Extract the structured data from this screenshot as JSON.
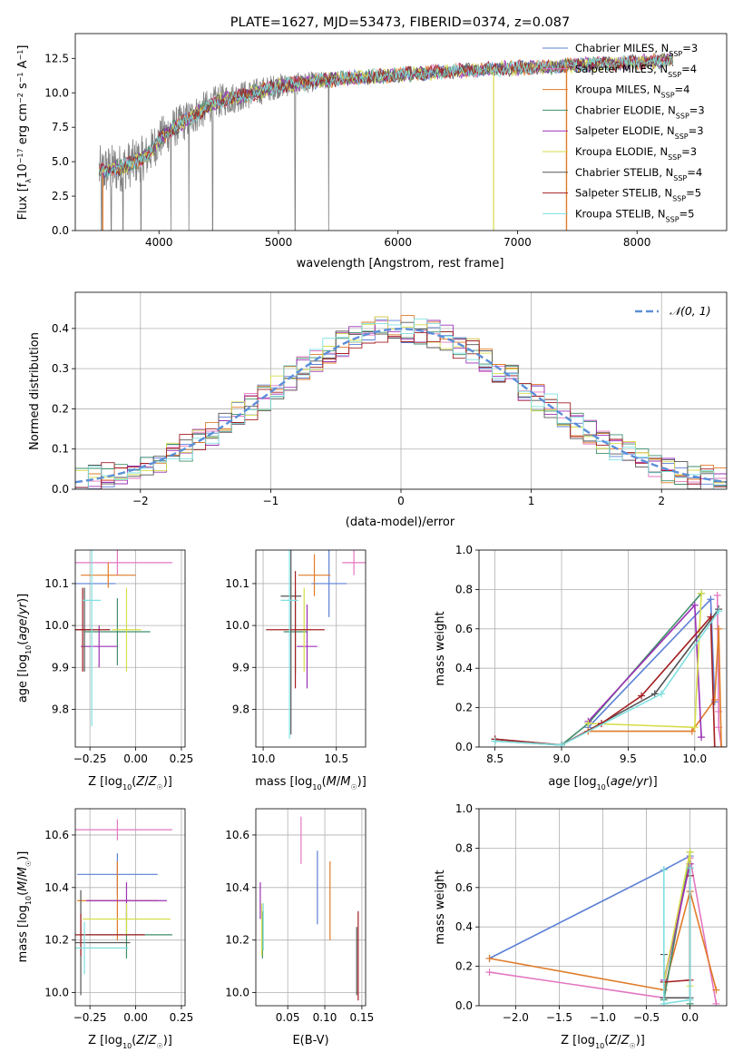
{
  "figure": {
    "title": "PLATE=1627, MJD=53473, FIBERID=0374, z=0.087"
  },
  "series_names": [
    "Chabrier MILES, N_SSP=3",
    "Salpeter MILES, N_SSP=4",
    "Kroupa MILES, N_SSP=4",
    "Chabrier ELODIE, N_SSP=3",
    "Salpeter ELODIE, N_SSP=3",
    "Kroupa ELODIE, N_SSP=3",
    "Chabrier STELIB, N_SSP=4",
    "Salpeter STELIB, N_SSP=5",
    "Kroupa STELIB, N_SSP=5"
  ],
  "series_colors": [
    "#5b7fd6",
    "#e377c2",
    "#e07b28",
    "#3f8f6a",
    "#9b30b5",
    "#d6dd4a",
    "#555555",
    "#a31f22",
    "#7fdfe0"
  ],
  "data_color": "#808080",
  "chart_data": [
    {
      "id": "spectrum",
      "type": "line",
      "xlabel": "wavelength [Angstrom, rest frame]",
      "ylabel": "Flux [f_λ 10^-17 erg cm^-2 s^-1 A^-1]",
      "xlim": [
        3300,
        8750
      ],
      "ylim": [
        0,
        14.3
      ],
      "xticks": [
        4000,
        5000,
        6000,
        7000,
        8000
      ],
      "yticks": [
        0.0,
        2.5,
        5.0,
        7.5,
        10.0,
        12.5
      ],
      "legend": {
        "position": "top-right",
        "entries": [
          {
            "base": "Chabrier MILES, N",
            "sub": "SSP",
            "tail": "=3"
          },
          {
            "base": "Salpeter MILES, N",
            "sub": "SSP",
            "tail": "=4"
          },
          {
            "base": "Kroupa MILES, N",
            "sub": "SSP",
            "tail": "=4"
          },
          {
            "base": "Chabrier ELODIE, N",
            "sub": "SSP",
            "tail": "=3"
          },
          {
            "base": "Salpeter ELODIE, N",
            "sub": "SSP",
            "tail": "=3"
          },
          {
            "base": "Kroupa ELODIE, N",
            "sub": "SSP",
            "tail": "=3"
          },
          {
            "base": "Chabrier STELIB, N",
            "sub": "SSP",
            "tail": "=4"
          },
          {
            "base": "Salpeter STELIB, N",
            "sub": "SSP",
            "tail": "=5"
          },
          {
            "base": "Kroupa STELIB, N",
            "sub": "SSP",
            "tail": "=5"
          }
        ]
      },
      "continuum": [
        [
          3500,
          4.3
        ],
        [
          3700,
          4.6
        ],
        [
          3900,
          5.4
        ],
        [
          4000,
          6.6
        ],
        [
          4100,
          7.3
        ],
        [
          4300,
          8.4
        ],
        [
          4500,
          9.4
        ],
        [
          4800,
          10.0
        ],
        [
          5000,
          10.5
        ],
        [
          5500,
          11.0
        ],
        [
          6000,
          11.3
        ],
        [
          6500,
          11.6
        ],
        [
          7000,
          11.8
        ],
        [
          7500,
          12.0
        ],
        [
          8000,
          12.2
        ],
        [
          8300,
          12.4
        ]
      ],
      "noisy_region": [
        3500,
        5500
      ],
      "dropouts": [
        3520,
        3600,
        3700,
        3850,
        4100,
        4250,
        4450,
        5140,
        5420,
        6800,
        7410
      ]
    },
    {
      "id": "residuals",
      "type": "histogram",
      "xlabel": "(data-model)/error",
      "ylabel": "Normed distribution",
      "xlim": [
        -2.5,
        2.5
      ],
      "ylim": [
        0,
        0.49
      ],
      "xticks": [
        -2,
        -1,
        0,
        1,
        2
      ],
      "yticks": [
        0.0,
        0.1,
        0.2,
        0.3,
        0.4
      ],
      "grid": true,
      "bin_width": 0.1,
      "model_label": "𝒩(0, 1)",
      "model_curve": "gaussian mean 0, sigma 1",
      "legend_position": "top-right"
    },
    {
      "id": "age_vs_Z",
      "type": "scatter",
      "xlabel": "Z [log10(Z/Z☉)]",
      "ylabel": "age [log10(age/yr)]",
      "xlim": [
        -0.33,
        0.27
      ],
      "ylim": [
        9.71,
        10.18
      ],
      "xticks": [
        -0.25,
        0.0,
        0.25
      ],
      "xticklabels": [
        "−0.25",
        "0.00",
        "0.25"
      ],
      "yticks": [
        9.8,
        9.9,
        10.0,
        10.1
      ],
      "grid": true,
      "points": [
        {
          "x": -0.26,
          "y": 10.1,
          "xerr": 0.15,
          "yerr": 0.0,
          "color": "#5b7fd6"
        },
        {
          "x": -0.1,
          "y": 10.15,
          "xerr": 0.3,
          "yerr": 0.03,
          "color": "#e377c2"
        },
        {
          "x": -0.15,
          "y": 10.12,
          "xerr": 0.15,
          "yerr": 0.03,
          "color": "#e07b28"
        },
        {
          "x": -0.1,
          "y": 9.985,
          "xerr": 0.18,
          "yerr": 0.08,
          "color": "#3f8f6a"
        },
        {
          "x": -0.2,
          "y": 9.95,
          "xerr": 0.1,
          "yerr": 0.05,
          "color": "#9b30b5"
        },
        {
          "x": -0.05,
          "y": 9.99,
          "xerr": 0.08,
          "yerr": 0.1,
          "color": "#d6dd4a"
        },
        {
          "x": -0.28,
          "y": 9.99,
          "xerr": 0.05,
          "yerr": 0.1,
          "color": "#555555"
        },
        {
          "x": -0.29,
          "y": 9.99,
          "xerr": 0.15,
          "yerr": 0.1,
          "color": "#a31f22"
        },
        {
          "x": -0.24,
          "y": 10.06,
          "xerr": 0.05,
          "yerr": 0.3,
          "color": "#7fdfe0"
        }
      ]
    },
    {
      "id": "age_vs_mass",
      "type": "scatter",
      "xlabel": "mass [log10(M/M☉)]",
      "xlim": [
        9.95,
        10.7
      ],
      "ylim": [
        9.71,
        10.18
      ],
      "xticks": [
        10.0,
        10.5
      ],
      "yticks": [
        9.8,
        9.9,
        10.0,
        10.1
      ],
      "grid": true,
      "points": [
        {
          "x": 10.45,
          "y": 10.1,
          "xerr": 0.12,
          "yerr": 0.08,
          "color": "#5b7fd6"
        },
        {
          "x": 10.62,
          "y": 10.15,
          "xerr": 0.08,
          "yerr": 0.03,
          "color": "#e377c2"
        },
        {
          "x": 10.35,
          "y": 10.12,
          "xerr": 0.11,
          "yerr": 0.05,
          "color": "#e07b28"
        },
        {
          "x": 10.22,
          "y": 9.985,
          "xerr": 0.08,
          "yerr": 0.1,
          "color": "#3f8f6a"
        },
        {
          "x": 10.3,
          "y": 9.95,
          "xerr": 0.07,
          "yerr": 0.1,
          "color": "#9b30b5"
        },
        {
          "x": 10.28,
          "y": 9.99,
          "xerr": 0.05,
          "yerr": 0.1,
          "color": "#d6dd4a"
        },
        {
          "x": 10.19,
          "y": 10.07,
          "xerr": 0.07,
          "yerr": 0.33,
          "color": "#555555"
        },
        {
          "x": 10.22,
          "y": 9.99,
          "xerr": 0.2,
          "yerr": 0.14,
          "color": "#a31f22"
        },
        {
          "x": 10.18,
          "y": 10.06,
          "xerr": 0.06,
          "yerr": 0.33,
          "color": "#7fdfe0"
        }
      ]
    },
    {
      "id": "weight_vs_age",
      "type": "line",
      "xlabel": "age [log10(age/yr)]",
      "ylabel": "mass weight",
      "xlim": [
        8.38,
        10.24
      ],
      "ylim": [
        0,
        1.0
      ],
      "xticks": [
        8.5,
        9.0,
        9.5,
        10.0
      ],
      "yticks": [
        0.0,
        0.2,
        0.4,
        0.6,
        0.8,
        1.0
      ],
      "grid": true,
      "series": [
        {
          "name": "Chabrier MILES, N_SSP=3",
          "points": [
            [
              9.2,
              0.1
            ],
            [
              10.12,
              0.75
            ],
            [
              10.15,
              0.23
            ]
          ]
        },
        {
          "name": "Salpeter MILES, N_SSP=4",
          "points": [
            [
              10.17,
              0.77
            ],
            [
              10.18,
              0.18
            ],
            [
              10.18,
              0.1
            ],
            [
              10.2,
              0.0
            ]
          ]
        },
        {
          "name": "Kroupa MILES, N_SSP=4",
          "points": [
            [
              9.2,
              0.08
            ],
            [
              9.98,
              0.08
            ],
            [
              10.15,
              0.24
            ],
            [
              10.18,
              0.6
            ],
            [
              10.2,
              0.0
            ]
          ]
        },
        {
          "name": "Chabrier ELODIE, N_SSP=3",
          "points": [
            [
              8.5,
              0.03
            ],
            [
              9.0,
              0.01
            ],
            [
              9.2,
              0.12
            ],
            [
              10.05,
              0.78
            ]
          ]
        },
        {
          "name": "Salpeter ELODIE, N_SSP=3",
          "points": [
            [
              9.2,
              0.13
            ],
            [
              10.0,
              0.72
            ],
            [
              10.05,
              0.05
            ]
          ]
        },
        {
          "name": "Kroupa ELODIE, N_SSP=3",
          "points": [
            [
              9.2,
              0.12
            ],
            [
              10.0,
              0.1
            ],
            [
              10.05,
              0.78
            ]
          ]
        },
        {
          "name": "Chabrier STELIB, N_SSP=4",
          "points": [
            [
              8.5,
              0.04
            ],
            [
              9.0,
              0.01
            ],
            [
              9.7,
              0.27
            ],
            [
              10.18,
              0.7
            ]
          ]
        },
        {
          "name": "Salpeter STELIB, N_SSP=5",
          "points": [
            [
              8.5,
              0.04
            ],
            [
              9.0,
              0.01
            ],
            [
              9.3,
              0.12
            ],
            [
              9.6,
              0.26
            ],
            [
              10.12,
              0.66
            ],
            [
              10.15,
              0.0
            ]
          ]
        },
        {
          "name": "Kroupa STELIB, N_SSP=5",
          "points": [
            [
              8.5,
              0.03
            ],
            [
              9.0,
              0.01
            ],
            [
              9.75,
              0.27
            ],
            [
              10.18,
              0.69
            ]
          ]
        }
      ]
    },
    {
      "id": "mass_vs_Z",
      "type": "scatter",
      "xlabel": "Z [log10(Z/Z☉)]",
      "ylabel": "mass [log10(M/M☉)]",
      "xlim": [
        -0.33,
        0.27
      ],
      "ylim": [
        9.95,
        10.7
      ],
      "xticks": [
        -0.25,
        0.0,
        0.25
      ],
      "xticklabels": [
        "−0.25",
        "0.00",
        "0.25"
      ],
      "yticks": [
        10.0,
        10.2,
        10.4,
        10.6
      ],
      "grid": true,
      "points": [
        {
          "x": -0.1,
          "y": 10.45,
          "xerr": 0.22,
          "yerr": 0.08,
          "color": "#5b7fd6"
        },
        {
          "x": -0.1,
          "y": 10.62,
          "xerr": 0.3,
          "yerr": 0.04,
          "color": "#e377c2"
        },
        {
          "x": -0.1,
          "y": 10.35,
          "xerr": 0.22,
          "yerr": 0.15,
          "color": "#e07b28"
        },
        {
          "x": -0.05,
          "y": 10.22,
          "xerr": 0.25,
          "yerr": 0.09,
          "color": "#3f8f6a"
        },
        {
          "x": -0.05,
          "y": 10.35,
          "xerr": 0.22,
          "yerr": 0.07,
          "color": "#9b30b5"
        },
        {
          "x": -0.05,
          "y": 10.28,
          "xerr": 0.24,
          "yerr": 0.06,
          "color": "#d6dd4a"
        },
        {
          "x": -0.3,
          "y": 10.19,
          "xerr": 0.27,
          "yerr": 0.2,
          "color": "#555555"
        },
        {
          "x": -0.3,
          "y": 10.22,
          "xerr": 0.35,
          "yerr": 0.08,
          "color": "#a31f22"
        },
        {
          "x": -0.28,
          "y": 10.17,
          "xerr": 0.24,
          "yerr": 0.1,
          "color": "#7fdfe0"
        }
      ]
    },
    {
      "id": "mass_vs_ebv",
      "type": "scatter",
      "xlabel": "E(B-V)",
      "xlim": [
        0.007,
        0.155
      ],
      "ylim": [
        9.95,
        10.7
      ],
      "xticks": [
        0.05,
        0.1,
        0.15
      ],
      "xticklabels": [
        "0.05",
        "0.10",
        "0.15"
      ],
      "yticks": [
        10.0,
        10.2,
        10.4,
        10.6
      ],
      "grid": true,
      "points": [
        {
          "x": 0.09,
          "y": 10.4,
          "xerr": 0.0,
          "yerr": 0.14,
          "color": "#5b7fd6"
        },
        {
          "x": 0.068,
          "y": 10.58,
          "xerr": 0.0,
          "yerr": 0.09,
          "color": "#e377c2"
        },
        {
          "x": 0.107,
          "y": 10.35,
          "xerr": 0.0,
          "yerr": 0.15,
          "color": "#e07b28"
        },
        {
          "x": 0.016,
          "y": 10.22,
          "xerr": 0.0,
          "yerr": 0.09,
          "color": "#3f8f6a"
        },
        {
          "x": 0.013,
          "y": 10.35,
          "xerr": 0.0,
          "yerr": 0.07,
          "color": "#9b30b5"
        },
        {
          "x": 0.015,
          "y": 10.24,
          "xerr": 0.0,
          "yerr": 0.1,
          "color": "#d6dd4a"
        },
        {
          "x": 0.143,
          "y": 10.12,
          "xerr": 0.0,
          "yerr": 0.13,
          "color": "#555555"
        },
        {
          "x": 0.145,
          "y": 10.14,
          "xerr": 0.0,
          "yerr": 0.17,
          "color": "#a31f22"
        },
        {
          "x": 0.017,
          "y": 10.25,
          "xerr": 0.0,
          "yerr": 0.09,
          "color": "#7fdfe0"
        }
      ]
    },
    {
      "id": "weight_vs_Z",
      "type": "line",
      "xlabel": "Z [log10(Z/Z☉)]",
      "ylabel": "mass weight",
      "xlim": [
        -2.42,
        0.42
      ],
      "ylim": [
        0,
        1.0
      ],
      "xticks": [
        -2.0,
        -1.5,
        -1.0,
        -0.5,
        0.0
      ],
      "xticklabels": [
        "−2.0",
        "−1.5",
        "−1.0",
        "−0.5",
        "0.0"
      ],
      "yticks": [
        0.0,
        0.2,
        0.4,
        0.6,
        0.8,
        1.0
      ],
      "grid": true,
      "series": [
        {
          "name": "Chabrier MILES, N_SSP=3",
          "points": [
            [
              -2.3,
              0.24
            ],
            [
              -0.3,
              0.69
            ],
            [
              0.0,
              0.76
            ]
          ]
        },
        {
          "name": "Salpeter MILES, N_SSP=4",
          "points": [
            [
              -2.3,
              0.17
            ],
            [
              -0.3,
              0.04
            ],
            [
              0.0,
              0.75
            ],
            [
              0.3,
              0.01
            ]
          ]
        },
        {
          "name": "Kroupa MILES, N_SSP=4",
          "points": [
            [
              -2.3,
              0.24
            ],
            [
              -0.3,
              0.08
            ],
            [
              0.0,
              0.58
            ],
            [
              0.3,
              0.08
            ]
          ]
        },
        {
          "name": "Chabrier ELODIE, N_SSP=3",
          "points": [
            [
              -0.3,
              0.03
            ],
            [
              0.0,
              0.78
            ],
            [
              0.0,
              0.01
            ]
          ]
        },
        {
          "name": "Salpeter ELODIE, N_SSP=3",
          "points": [
            [
              -0.3,
              0.13
            ],
            [
              0.0,
              0.72
            ],
            [
              -0.3,
              0.12
            ]
          ]
        },
        {
          "name": "Kroupa ELODIE, N_SSP=3",
          "points": [
            [
              -0.3,
              0.12
            ],
            [
              0.0,
              0.78
            ],
            [
              0.0,
              0.1
            ]
          ]
        },
        {
          "name": "Chabrier STELIB, N_SSP=4",
          "points": [
            [
              -0.3,
              0.26
            ],
            [
              -0.3,
              0.04
            ],
            [
              0.0,
              0.04
            ],
            [
              0.0,
              0.7
            ]
          ]
        },
        {
          "name": "Salpeter STELIB, N_SSP=5",
          "points": [
            [
              -0.3,
              0.12
            ],
            [
              0.0,
              0.13
            ],
            [
              0.0,
              0.66
            ]
          ]
        },
        {
          "name": "Kroupa STELIB, N_SSP=5",
          "points": [
            [
              -0.3,
              0.69
            ],
            [
              -0.3,
              0.01
            ],
            [
              0.0,
              0.03
            ],
            [
              0.0,
              0.7
            ]
          ]
        }
      ]
    }
  ]
}
